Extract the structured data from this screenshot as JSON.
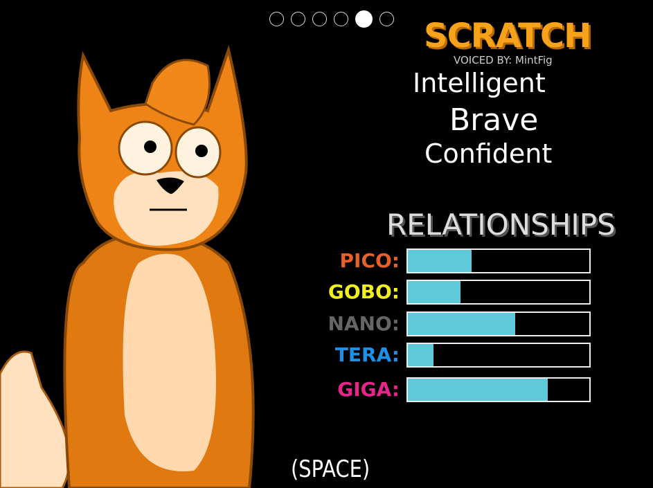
{
  "pagination": {
    "total": 6,
    "active_index": 4
  },
  "character": {
    "name": "SCRATCH",
    "voiced_by": "VOICED BY: MintFig",
    "traits": [
      "Intelligent",
      "Brave",
      "Confident"
    ]
  },
  "relationships": {
    "title": "RELATIONSHIPS",
    "items": [
      {
        "label": "PICO:",
        "color": "#e5602a",
        "level_percent": 35
      },
      {
        "label": "GOBO:",
        "color": "#f2ef1e",
        "level_percent": 29
      },
      {
        "label": "NANO:",
        "color": "#666666",
        "level_percent": 59
      },
      {
        "label": "TERA:",
        "color": "#1e90e8",
        "level_percent": 14
      },
      {
        "label": "GIGA:",
        "color": "#e8248a",
        "level_percent": 77
      }
    ],
    "bar_color": "#5ecad9"
  },
  "prompt": "(SPACE)"
}
